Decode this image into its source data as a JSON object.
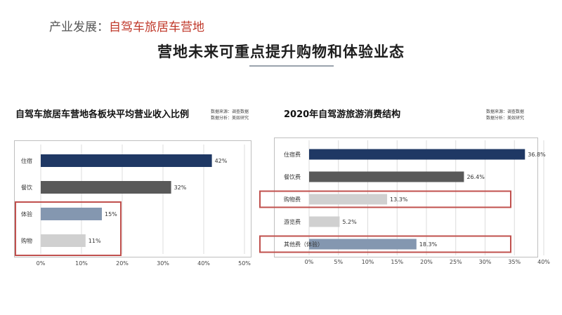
{
  "header": {
    "prefix": "产业发展：",
    "topic": "自驾车旅居车营地"
  },
  "slide_title": "营地未来可重点提升购物和体验业态",
  "chart_data": [
    {
      "type": "bar",
      "orientation": "horizontal",
      "title": "自驾车旅居车营地各板块平均营业收入比例",
      "source_lines": [
        "数据来源：调查数据",
        "数据分析：美奴研究"
      ],
      "categories": [
        "住宿",
        "餐饮",
        "体验",
        "购物"
      ],
      "values": [
        42,
        32,
        15,
        11
      ],
      "value_labels": [
        "42%",
        "32%",
        "15%",
        "11%"
      ],
      "colors": [
        "#1f3864",
        "#595959",
        "#8497b0",
        "#d0d0d0"
      ],
      "xlim": [
        0,
        50
      ],
      "ticks": [
        "0%",
        "10%",
        "20%",
        "30%",
        "40%",
        "50%"
      ],
      "grid": true,
      "highlight": [
        2,
        3
      ]
    },
    {
      "type": "bar",
      "orientation": "horizontal",
      "title": "2020年自驾游旅游消费结构",
      "source_lines": [
        "数据来源：调查数据",
        "数据分析：美奴研究"
      ],
      "categories": [
        "住宿费",
        "餐饮费",
        "购物费",
        "游览费",
        "其他费（体验）"
      ],
      "values": [
        36.8,
        26.4,
        13.3,
        5.2,
        18.3
      ],
      "value_labels": [
        "36.8%",
        "26.4%",
        "13.3%",
        "5.2%",
        "18.3%"
      ],
      "colors": [
        "#1f3864",
        "#595959",
        "#d0d0d0",
        "#d0d0d0",
        "#8497b0"
      ],
      "xlim": [
        0,
        40
      ],
      "ticks": [
        "0%",
        "5%",
        "10%",
        "15%",
        "20%",
        "25%",
        "30%",
        "35%",
        "40%"
      ],
      "grid": true,
      "highlight": [
        2,
        4
      ]
    }
  ]
}
